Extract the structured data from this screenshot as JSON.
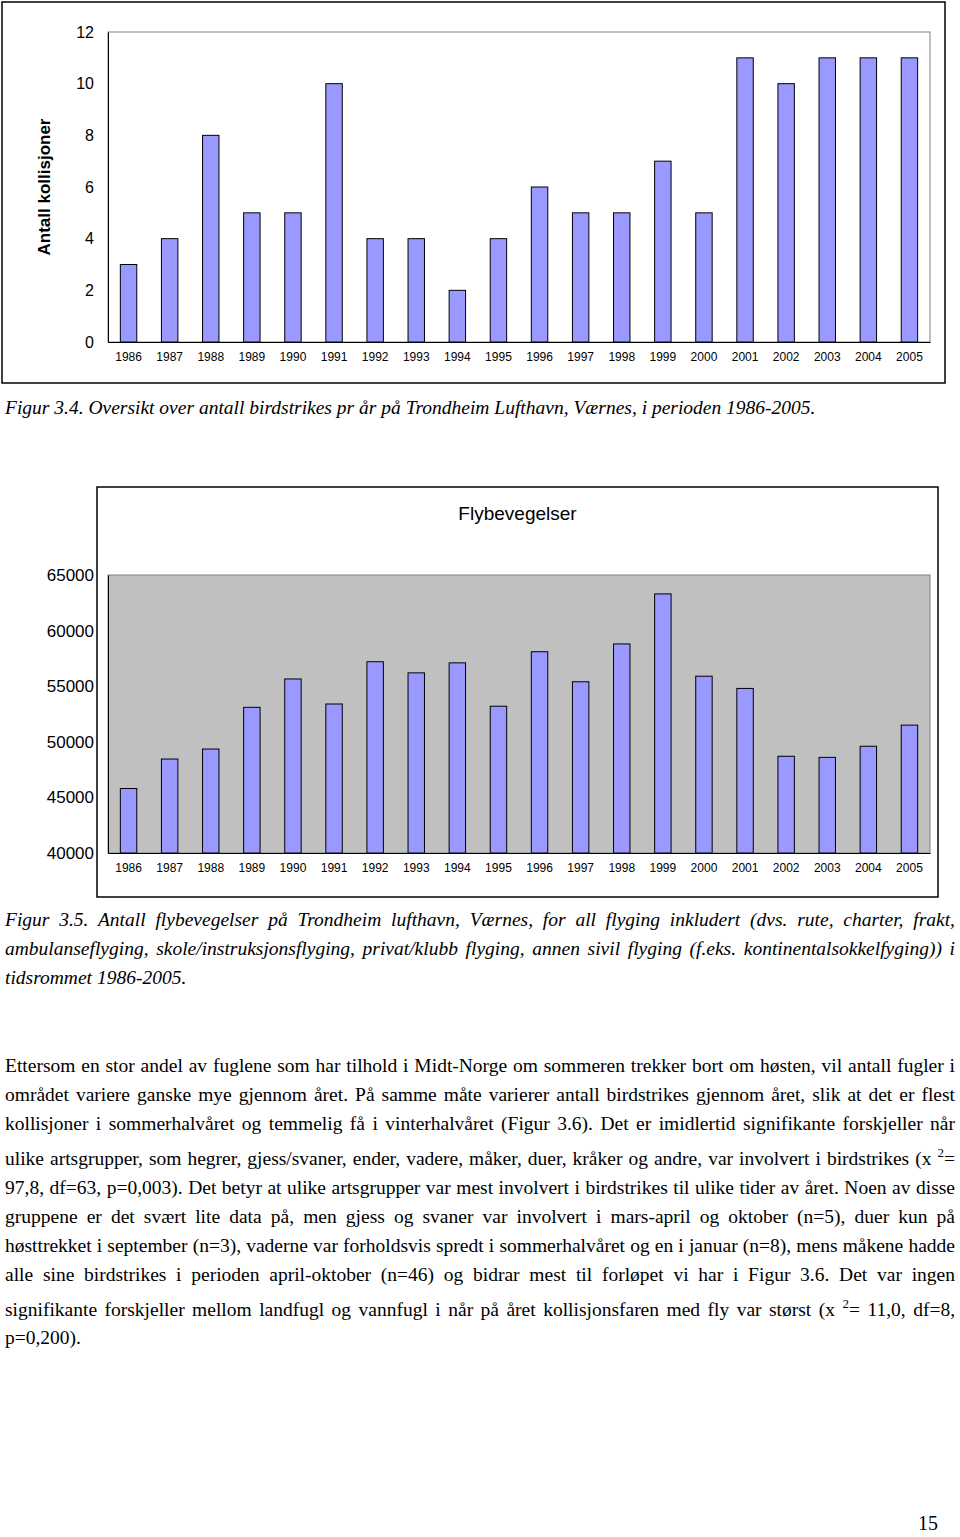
{
  "chart_data": [
    {
      "type": "bar",
      "ylabel": "Antall kollisjoner",
      "categories": [
        "1986",
        "1987",
        "1988",
        "1989",
        "1990",
        "1991",
        "1992",
        "1993",
        "1994",
        "1995",
        "1996",
        "1997",
        "1998",
        "1999",
        "2000",
        "2001",
        "2002",
        "2003",
        "2004",
        "2005"
      ],
      "values": [
        3,
        4,
        8,
        5,
        5,
        10,
        4,
        4,
        2,
        4,
        6,
        5,
        5,
        7,
        5,
        11,
        10,
        11,
        11,
        11
      ],
      "color": "#9999ff",
      "ylim": [
        0,
        12
      ],
      "yticks": [
        0,
        2,
        4,
        6,
        8,
        10,
        12
      ],
      "grid": false
    },
    {
      "type": "bar",
      "title": "Flybevegelser",
      "categories": [
        "1986",
        "1987",
        "1988",
        "1989",
        "1990",
        "1991",
        "1992",
        "1993",
        "1994",
        "1995",
        "1996",
        "1997",
        "1998",
        "1999",
        "2000",
        "2001",
        "2002",
        "2003",
        "2004",
        "2005"
      ],
      "values": [
        45800,
        48450,
        49350,
        53100,
        55650,
        53400,
        57200,
        56200,
        57100,
        53200,
        58100,
        55400,
        58800,
        63300,
        55900,
        54800,
        48700,
        48600,
        49600,
        51500
      ],
      "color": "#9999ff",
      "ylim": [
        40000,
        65000
      ],
      "yticks": [
        40000,
        45000,
        50000,
        55000,
        60000,
        65000
      ],
      "grid": false
    }
  ],
  "captions": [
    "Figur 3.4. Oversikt over antall birdstrikes pr år på Trondheim Lufthavn, Værnes, i perioden 1986-2005.",
    "Figur 3.5. Antall flybevegelser på Trondheim lufthavn, Værnes, for all flyging inkludert (dvs. rute, charter, frakt, ambulanseflyging, skole/instruksjonsflyging, privat/klubb flyging, annen sivil flyging (f.eks. kontinentalsokkelfyging)) i tidsrommet 1986-2005."
  ],
  "paragraph": [
    {
      "text": "Ettersom en stor andel av fuglene som har tilhold i Midt-Norge om sommeren trekker bort om høsten, vil antall fugler i området variere ganske mye gjennom året. På samme måte varierer antall birdstrikes gjennom året, slik at det er flest kollisjoner i sommerhalvåret og temmelig få i vinterhalvåret (Figur 3.6). Det er imidlertid signifikante forskjeller når ulike artsgrupper, som hegrer, gjess/svaner, ender, vadere, måker, duer, kråker og andre, var involvert i birdstrikes (x "
    },
    {
      "sup": "2"
    },
    {
      "text": "= 97,8, df=63, p=0,003). Det betyr at ulike artsgrupper var mest involvert i birdstrikes til ulike tider av året. Noen av disse gruppene er det svært lite data på, men gjess og svaner var involvert i mars-april og oktober (n=5), duer kun på høsttrekket i september (n=3), vaderne var forholdsvis spredt i sommerhalvåret og en i januar (n=8), mens måkene hadde alle sine birdstrikes i perioden april-oktober (n=46) og bidrar mest til forløpet vi har i Figur 3.6. Det var ingen signifikante forskjeller mellom landfugl og vannfugl i når på året kollisjonsfaren med fly var størst (x "
    },
    {
      "sup": "2"
    },
    {
      "text": "= 11,0, df=8, p=0,200)."
    }
  ],
  "page_number": "15"
}
